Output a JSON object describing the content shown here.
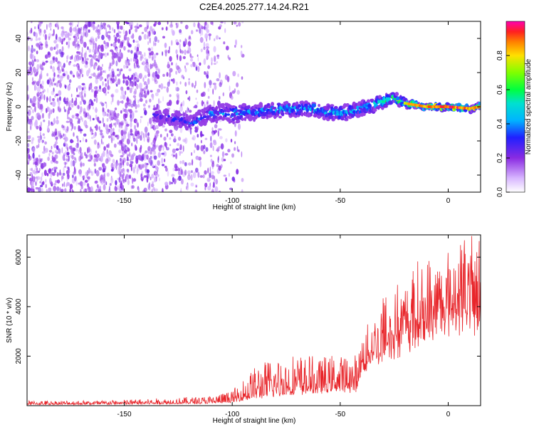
{
  "title": "C2E4.2025.277.14.24.R21",
  "chart_data": [
    {
      "type": "heatmap",
      "xlabel": "Height of straight line (km)",
      "ylabel": "Frequency (Hz)",
      "xlim": [
        -195,
        15
      ],
      "ylim": [
        -50,
        50
      ],
      "xticks": [
        -150,
        -100,
        -50,
        0
      ],
      "yticks": [
        -40,
        -20,
        0,
        20,
        40
      ],
      "noise_region_x": [
        -195,
        -100
      ],
      "signal_trace": {
        "x": [
          -135,
          -125,
          -120,
          -110,
          -100,
          -90,
          -80,
          -70,
          -60,
          -50,
          -40,
          -30,
          -25,
          -20,
          -10,
          0,
          10,
          15
        ],
        "center_hz": [
          -5,
          -7,
          -10,
          -4,
          -4,
          -3,
          -2,
          -1,
          -2,
          -4,
          -1,
          3,
          5,
          2,
          0,
          0,
          -1,
          0
        ],
        "half_width_hz": [
          4,
          4,
          4,
          5,
          5,
          4,
          4,
          4,
          4,
          4,
          4,
          4,
          3,
          2,
          1.5,
          1.5,
          1.5,
          1.5
        ],
        "peak_amplitude": [
          0.3,
          0.35,
          0.4,
          0.4,
          0.45,
          0.5,
          0.5,
          0.55,
          0.5,
          0.55,
          0.5,
          0.6,
          0.65,
          0.85,
          0.9,
          0.95,
          0.9,
          0.9
        ]
      },
      "colorbar": {
        "label": "Normalized spectral amplitude",
        "range": [
          0,
          1
        ],
        "ticks": [
          0.0,
          0.2,
          0.4,
          0.6,
          0.8
        ]
      }
    },
    {
      "type": "line",
      "xlabel": "Height of straight line (km)",
      "ylabel": "SNR (10 * v/v)",
      "xlim": [
        -195,
        15
      ],
      "ylim": [
        0,
        6900
      ],
      "xticks": [
        -150,
        -100,
        -50,
        0
      ],
      "yticks": [
        2000,
        4000,
        6000
      ],
      "color": "#e8252a",
      "envelope": {
        "x": [
          -195,
          -160,
          -130,
          -110,
          -100,
          -90,
          -80,
          -70,
          -60,
          -50,
          -42,
          -40,
          -35,
          -30,
          -25,
          -20,
          -15,
          -10,
          -5,
          0,
          5,
          10,
          15
        ],
        "base": [
          40,
          50,
          70,
          90,
          130,
          300,
          400,
          500,
          550,
          600,
          650,
          1300,
          1800,
          2000,
          2300,
          2500,
          2800,
          3000,
          3200,
          3400,
          3500,
          3300,
          3300
        ],
        "peak": [
          200,
          220,
          300,
          400,
          600,
          1600,
          2000,
          2100,
          1900,
          2100,
          2000,
          3100,
          3700,
          4600,
          5000,
          5000,
          5500,
          5800,
          6100,
          6000,
          6900,
          6600,
          6900
        ]
      }
    }
  ]
}
